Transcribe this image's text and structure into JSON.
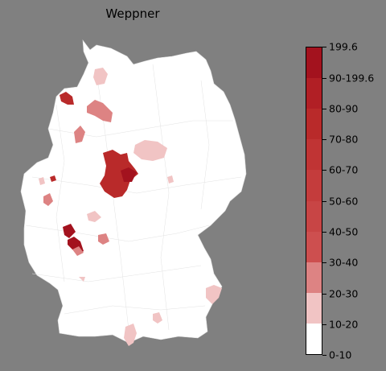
{
  "title": "Weppner",
  "legend": {
    "labels": [
      "0-10",
      "10-20",
      "20-30",
      "30-40",
      "40-50",
      "50-60",
      "60-70",
      "70-80",
      "80-90",
      "90-199.6",
      "199.6"
    ],
    "colors": [
      "#ffffff",
      "#f1c4c4",
      "#dd8383",
      "#cd4f4f",
      "#c84545",
      "#c43c3c",
      "#c03434",
      "#b92a2a",
      "#b11f25",
      "#a3121e"
    ]
  }
}
